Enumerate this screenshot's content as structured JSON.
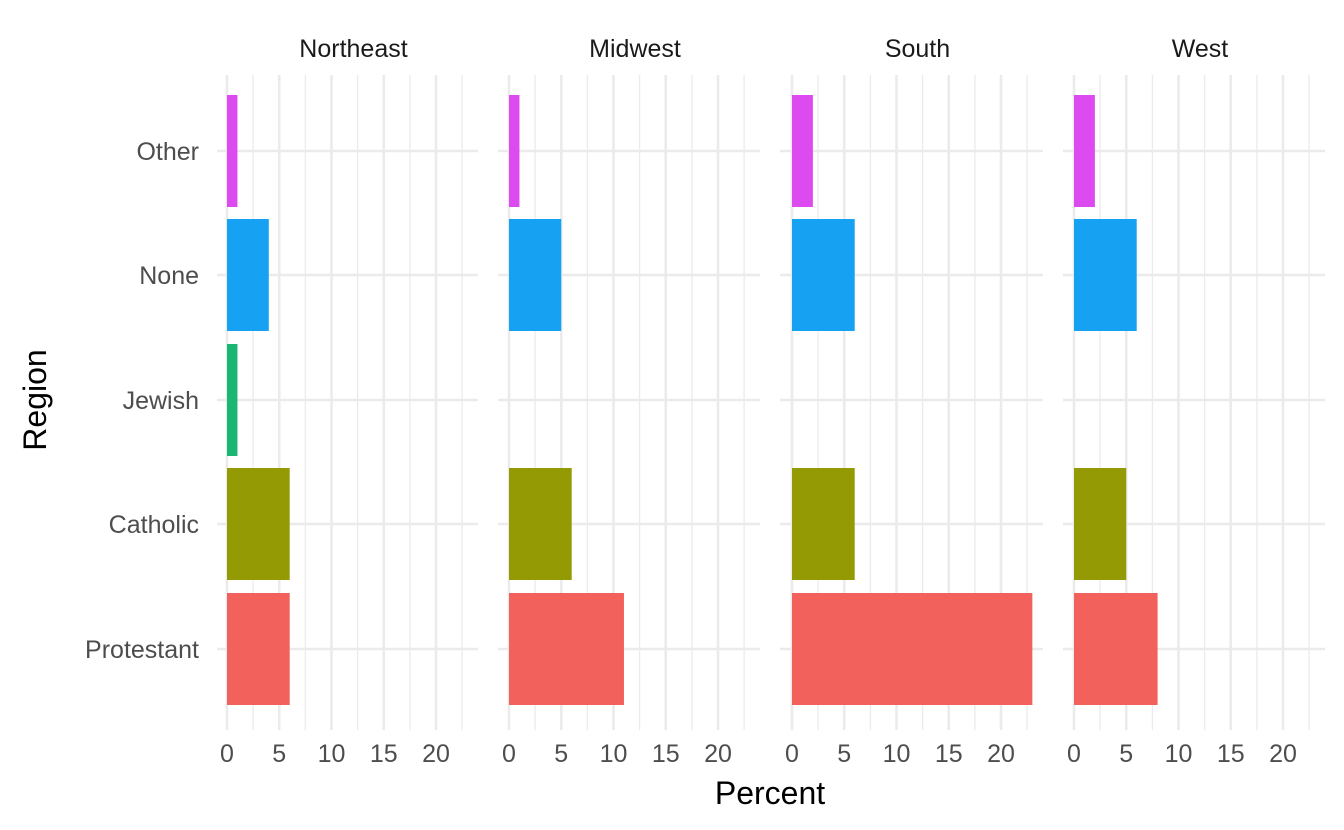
{
  "chart_data": {
    "type": "bar",
    "orientation": "horizontal",
    "faceted_by": "region",
    "xlabel": "Percent",
    "ylabel": "Region",
    "xlim": [
      0,
      23
    ],
    "x_ticks": [
      0,
      5,
      10,
      15,
      20
    ],
    "categories": [
      "Protestant",
      "Catholic",
      "Jewish",
      "None",
      "Other"
    ],
    "category_colors": {
      "Protestant": "#F3615C",
      "Catholic": "#939A04",
      "Jewish": "#1BB671",
      "None": "#17A1F2",
      "Other": "#DC4BF0"
    },
    "grid": true,
    "legend": "none",
    "facets": [
      {
        "title": "Northeast",
        "values": {
          "Protestant": 6,
          "Catholic": 6,
          "Jewish": 1,
          "None": 4,
          "Other": 1
        }
      },
      {
        "title": "Midwest",
        "values": {
          "Protestant": 11,
          "Catholic": 6,
          "Jewish": 0,
          "None": 5,
          "Other": 1
        }
      },
      {
        "title": "South",
        "values": {
          "Protestant": 23,
          "Catholic": 6,
          "Jewish": 0,
          "None": 6,
          "Other": 2
        }
      },
      {
        "title": "West",
        "values": {
          "Protestant": 8,
          "Catholic": 5,
          "Jewish": 0,
          "None": 6,
          "Other": 2
        }
      }
    ]
  }
}
